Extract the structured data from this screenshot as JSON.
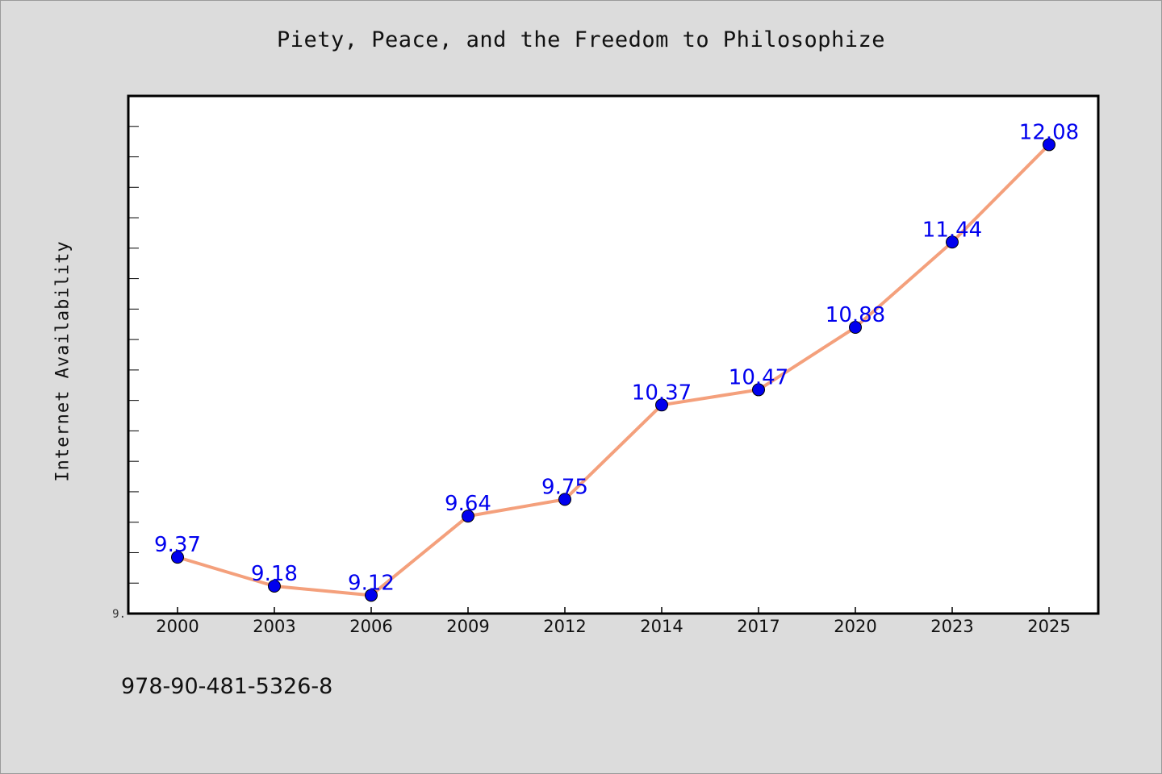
{
  "page": {
    "background": "#dcdcdc",
    "isbn": "978-90-481-5326-8"
  },
  "chart_data": {
    "type": "line",
    "title": "Piety, Peace, and the Freedom to Philosophize",
    "xlabel": "",
    "ylabel": "Internet Availability",
    "categories": [
      "2000",
      "2003",
      "2006",
      "2009",
      "2012",
      "2014",
      "2017",
      "2020",
      "2023",
      "2025"
    ],
    "series": [
      {
        "values": [
          9.37,
          9.18,
          9.12,
          9.64,
          9.75,
          10.37,
          10.47,
          10.88,
          11.44,
          12.08
        ],
        "labels": [
          "9.37",
          "9.18",
          "9.12",
          "9.64",
          "9.75",
          "10.37",
          "10.47",
          "10.88",
          "11.44",
          "12.08"
        ],
        "line_color": "#f4a07c",
        "marker_color": "#0000ee",
        "label_color": "#0000ee"
      }
    ],
    "ylim": [
      9.0,
      12.4
    ],
    "ytick_label": "9.",
    "grid": false,
    "legend": "none",
    "plot_background": "#ffffff"
  }
}
